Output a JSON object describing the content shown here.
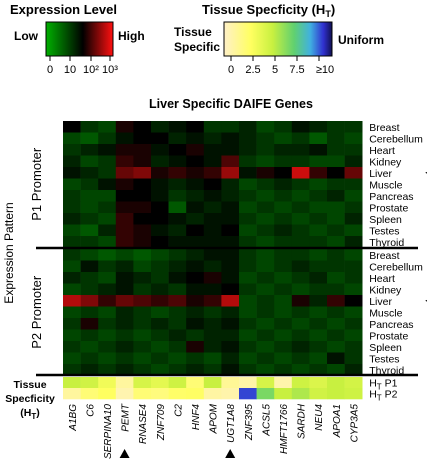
{
  "chart_data": {
    "type": "heatmap",
    "title": "Liver Specific DAIFE Genes",
    "ylabel": "Expression Pattern",
    "expression_legend": {
      "title": "Expression Level",
      "low_label": "Low",
      "high_label": "High",
      "ticks": [
        "0",
        "10",
        "10²",
        "10³"
      ],
      "colors": [
        "#00b000",
        "#000000",
        "#ff1010"
      ]
    },
    "specificity_legend": {
      "title": "Tissue Specficity (H",
      "title_sub": "T",
      "title_end": ")",
      "left_label_1": "Tissue",
      "left_label_2": "Specific",
      "right_label": "Uniform",
      "ticks": [
        "0",
        "2.5",
        "5",
        "7.5",
        "≥10"
      ],
      "colors": [
        "#fff0c8",
        "#ffff60",
        "#c8f040",
        "#60d070",
        "#40b0e0",
        "#3030d0",
        "#101050"
      ]
    },
    "genes": [
      "A1BG",
      "C6",
      "SERPINA10",
      "PEMT",
      "RNASE4",
      "ZNF709",
      "C2",
      "HNF4",
      "APOM",
      "UGT1A8",
      "ZNF395",
      "ACSL5",
      "HMFT1766",
      "SARDH",
      "NEU4",
      "APOA1",
      "CYP3A5"
    ],
    "marked_genes": [
      "PEMT",
      "UGT1A8"
    ],
    "tissues": [
      "Breast",
      "Cerebellum",
      "Heart",
      "Kidney",
      "Liver",
      "Muscle",
      "Pancreas",
      "Prostate",
      "Spleen",
      "Testes",
      "Thyroid"
    ],
    "marked_tissue": "Liver",
    "promoters": [
      {
        "name": "P1 Promoter",
        "values": [
          [
            0.5,
            0.35,
            0.3,
            0.55,
            0.5,
            0.4,
            0.45,
            0.5,
            0.35,
            0.35,
            0.4,
            0.3,
            0.35,
            0.45,
            0.4,
            0.35,
            0.35
          ],
          [
            0.3,
            0.25,
            0.35,
            0.45,
            0.5,
            0.5,
            0.4,
            0.45,
            0.4,
            0.45,
            0.4,
            0.35,
            0.3,
            0.35,
            0.25,
            0.35,
            0.3
          ],
          [
            0.35,
            0.4,
            0.45,
            0.55,
            0.55,
            0.45,
            0.5,
            0.55,
            0.45,
            0.45,
            0.4,
            0.35,
            0.4,
            0.4,
            0.45,
            0.35,
            0.35
          ],
          [
            0.4,
            0.3,
            0.35,
            0.6,
            0.55,
            0.4,
            0.45,
            0.5,
            0.45,
            0.65,
            0.35,
            0.3,
            0.35,
            0.35,
            0.3,
            0.3,
            0.4
          ],
          [
            0.45,
            0.4,
            0.35,
            0.7,
            0.75,
            0.55,
            0.6,
            0.55,
            0.6,
            0.8,
            0.45,
            0.55,
            0.5,
            0.9,
            0.6,
            0.5,
            0.7
          ],
          [
            0.3,
            0.35,
            0.45,
            0.55,
            0.5,
            0.45,
            0.4,
            0.45,
            0.5,
            0.4,
            0.3,
            0.35,
            0.4,
            0.35,
            0.3,
            0.35,
            0.35
          ],
          [
            0.35,
            0.3,
            0.3,
            0.5,
            0.5,
            0.45,
            0.35,
            0.4,
            0.45,
            0.4,
            0.35,
            0.3,
            0.35,
            0.3,
            0.35,
            0.4,
            0.3
          ],
          [
            0.35,
            0.3,
            0.35,
            0.55,
            0.55,
            0.5,
            0.25,
            0.45,
            0.4,
            0.45,
            0.3,
            0.35,
            0.3,
            0.35,
            0.3,
            0.3,
            0.35
          ],
          [
            0.4,
            0.35,
            0.3,
            0.6,
            0.5,
            0.5,
            0.45,
            0.4,
            0.45,
            0.45,
            0.35,
            0.3,
            0.35,
            0.3,
            0.35,
            0.3,
            0.4
          ],
          [
            0.3,
            0.25,
            0.4,
            0.6,
            0.55,
            0.45,
            0.4,
            0.5,
            0.45,
            0.5,
            0.3,
            0.35,
            0.4,
            0.35,
            0.3,
            0.35,
            0.3
          ],
          [
            0.35,
            0.35,
            0.3,
            0.6,
            0.55,
            0.5,
            0.45,
            0.45,
            0.45,
            0.45,
            0.35,
            0.3,
            0.35,
            0.35,
            0.35,
            0.3,
            0.4
          ]
        ]
      },
      {
        "name": "P2 Promoter",
        "values": [
          [
            0.35,
            0.3,
            0.25,
            0.3,
            0.25,
            0.3,
            0.35,
            0.4,
            0.45,
            0.45,
            0.35,
            0.3,
            0.35,
            0.35,
            0.3,
            0.35,
            0.3
          ],
          [
            0.3,
            0.45,
            0.35,
            0.4,
            0.3,
            0.35,
            0.4,
            0.45,
            0.4,
            0.45,
            0.35,
            0.3,
            0.35,
            0.4,
            0.35,
            0.35,
            0.35
          ],
          [
            0.4,
            0.35,
            0.3,
            0.45,
            0.4,
            0.35,
            0.45,
            0.5,
            0.55,
            0.45,
            0.3,
            0.35,
            0.3,
            0.35,
            0.4,
            0.3,
            0.35
          ],
          [
            0.3,
            0.35,
            0.4,
            0.45,
            0.35,
            0.4,
            0.35,
            0.45,
            0.45,
            0.5,
            0.35,
            0.3,
            0.35,
            0.3,
            0.35,
            0.35,
            0.3
          ],
          [
            0.85,
            0.75,
            0.6,
            0.7,
            0.65,
            0.6,
            0.65,
            0.55,
            0.6,
            0.85,
            0.3,
            0.35,
            0.3,
            0.55,
            0.4,
            0.6,
            0.5
          ],
          [
            0.3,
            0.35,
            0.3,
            0.4,
            0.35,
            0.3,
            0.35,
            0.4,
            0.35,
            0.4,
            0.3,
            0.35,
            0.3,
            0.35,
            0.3,
            0.35,
            0.3
          ],
          [
            0.35,
            0.55,
            0.35,
            0.4,
            0.35,
            0.4,
            0.35,
            0.45,
            0.4,
            0.45,
            0.35,
            0.3,
            0.35,
            0.3,
            0.35,
            0.3,
            0.35
          ],
          [
            0.3,
            0.35,
            0.3,
            0.35,
            0.3,
            0.35,
            0.4,
            0.35,
            0.4,
            0.4,
            0.3,
            0.35,
            0.3,
            0.35,
            0.3,
            0.35,
            0.3
          ],
          [
            0.35,
            0.3,
            0.35,
            0.4,
            0.35,
            0.3,
            0.35,
            0.55,
            0.4,
            0.45,
            0.35,
            0.3,
            0.35,
            0.4,
            0.35,
            0.3,
            0.35
          ],
          [
            0.3,
            0.35,
            0.3,
            0.35,
            0.3,
            0.35,
            0.3,
            0.35,
            0.3,
            0.4,
            0.3,
            0.35,
            0.3,
            0.35,
            0.3,
            0.45,
            0.35
          ],
          [
            0.35,
            0.4,
            0.35,
            0.4,
            0.35,
            0.3,
            0.35,
            0.4,
            0.35,
            0.45,
            0.35,
            0.3,
            0.35,
            0.3,
            0.35,
            0.3,
            0.4
          ]
        ]
      }
    ],
    "specificity_label": "Tissue Specficity (H",
    "specificity_label_sub": "T",
    "specificity_label_end": ")",
    "specificity_rows": [
      {
        "label": "H",
        "label_sub": "T",
        "label_end": " P1",
        "values": [
          4.5,
          4.2,
          3.0,
          1.0,
          4.0,
          3.5,
          4.3,
          2.0,
          4.5,
          1.2,
          0.8,
          4.0,
          0.7,
          4.3,
          3.8,
          4.5,
          4.1
        ]
      },
      {
        "label": "H",
        "label_sub": "T",
        "label_end": " P2",
        "values": [
          1.0,
          2.0,
          2.5,
          0.6,
          2.0,
          1.8,
          2.3,
          2.4,
          0.9,
          0.7,
          9.0,
          6.0,
          4.5,
          5.0,
          4.2,
          4.5,
          4.3
        ]
      }
    ]
  }
}
